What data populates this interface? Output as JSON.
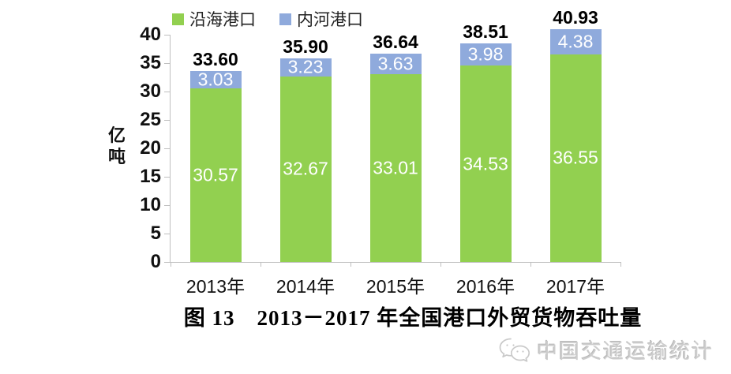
{
  "chart_data": {
    "type": "bar",
    "stacked": true,
    "title": "图 13　2013－2017 年全国港口外贸货物吞吐量",
    "categories": [
      "2013年",
      "2014年",
      "2015年",
      "2016年",
      "2017年"
    ],
    "series": [
      {
        "name": "沿海港口",
        "color": "#92D050",
        "values": [
          30.57,
          32.67,
          33.01,
          34.53,
          36.55
        ]
      },
      {
        "name": "内河港口",
        "color": "#8FAADC",
        "values": [
          3.03,
          3.23,
          3.63,
          3.98,
          4.38
        ]
      }
    ],
    "totals": [
      33.6,
      35.9,
      36.64,
      38.51,
      40.93
    ],
    "xlabel": "",
    "ylabel": "亿吨",
    "ylim": [
      0,
      40
    ],
    "ytick_step": 5,
    "yticks": [
      0,
      5,
      10,
      15,
      20,
      25,
      30,
      35,
      40
    ],
    "legend_position": "top",
    "grid": false,
    "axis_color": "#BFBFBF",
    "value_label_color": "#FFFFFF"
  },
  "caption": {
    "text": "图 13　2013－2017 年全国港口外贸货物吞吐量"
  },
  "watermark": {
    "text": "中国交通运输统计",
    "icon": "wechat-chat-bubbles",
    "color": "#CDCDCD"
  }
}
